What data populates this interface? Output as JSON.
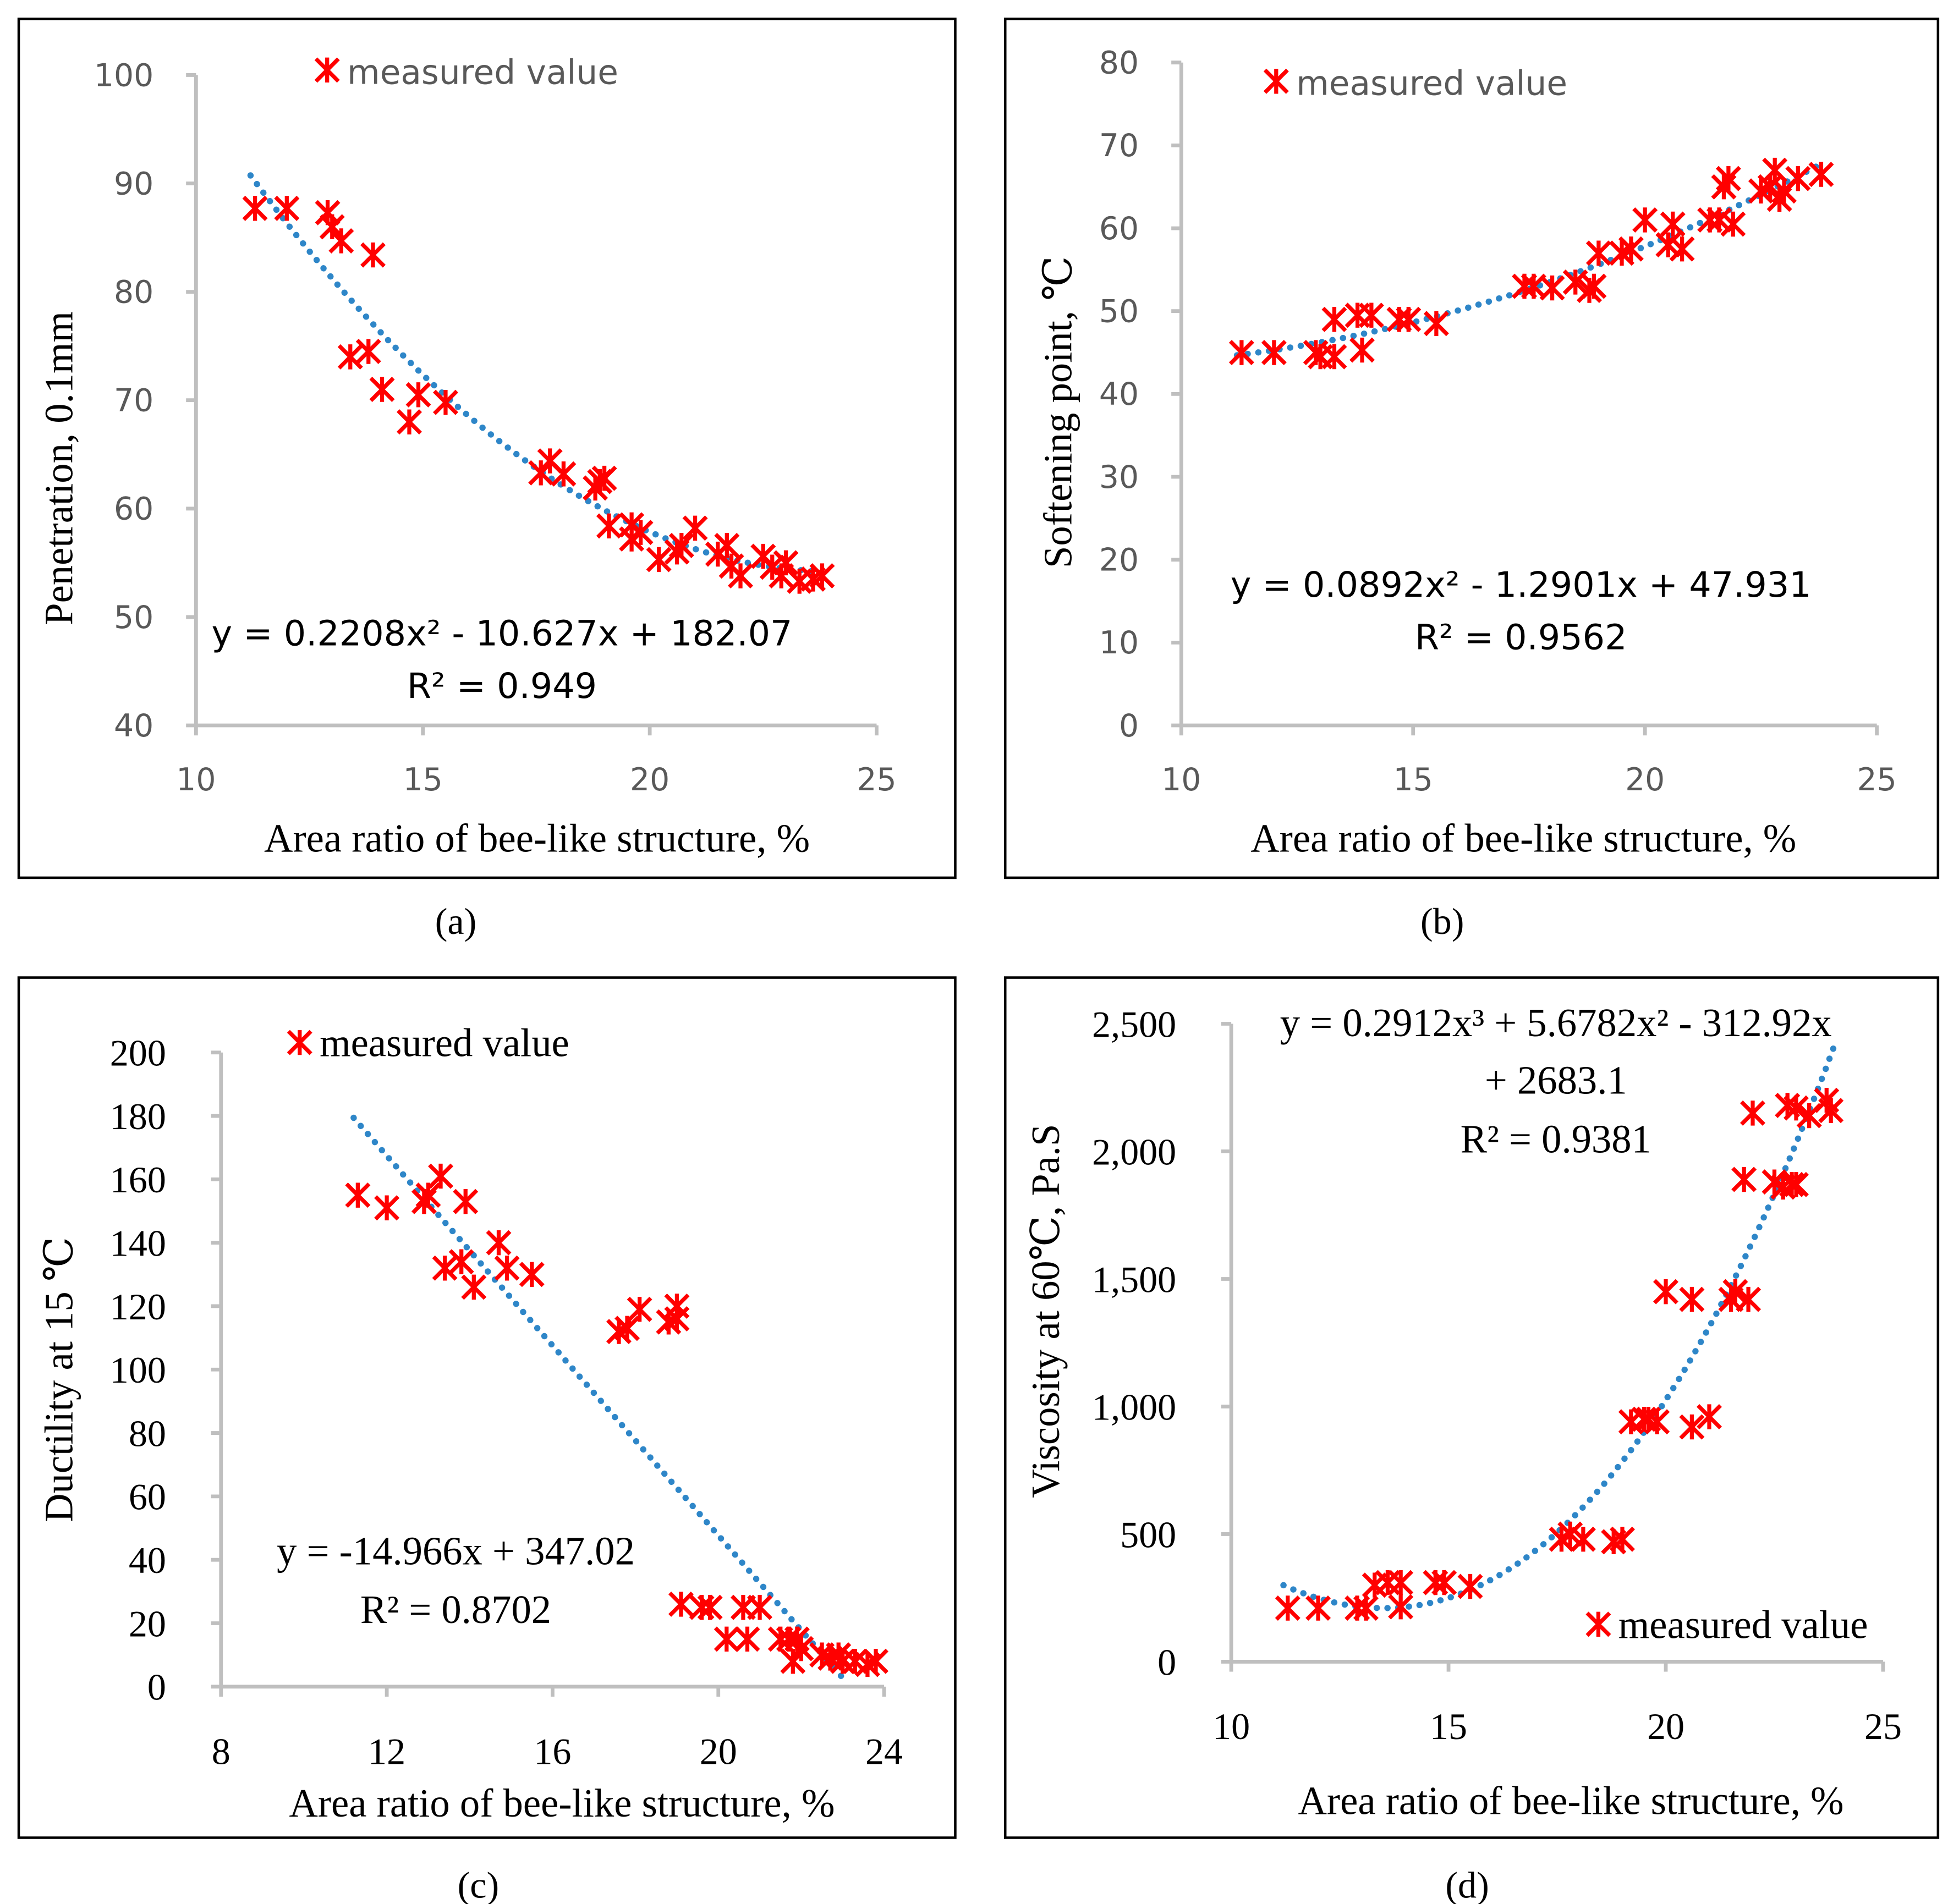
{
  "colors": {
    "marker": "#ff0000",
    "trend": "#2e86c8",
    "axis": "#bfbfbf",
    "frame": "#000000"
  },
  "chart_data": [
    {
      "type": "scatter",
      "caption": "(a)",
      "xlabel": "Area ratio of bee-like structure, %",
      "ylabel": "Penetration, 0.1mm",
      "xlim": [
        10,
        25
      ],
      "ylim": [
        40,
        100
      ],
      "xticks": [
        "10",
        "15",
        "20",
        "25"
      ],
      "xtick_values": [
        10,
        15,
        20,
        25
      ],
      "yticks": [
        "40",
        "50",
        "60",
        "70",
        "80",
        "90",
        "100"
      ],
      "ytick_values": [
        40,
        50,
        60,
        70,
        80,
        90,
        100
      ],
      "legend": "measured value",
      "legend_position": "top-left",
      "trend": {
        "type": "polynomial",
        "coefficients": [
          182.07,
          -10.627,
          0.2208
        ],
        "x_range": [
          11.2,
          23.8
        ]
      },
      "equation": [
        "y = 0.2208x² - 10.627x + 182.07",
        "R² = 0.949"
      ],
      "x": [
        11.3,
        12.0,
        12.9,
        13.0,
        13.2,
        13.9,
        13.4,
        13.8,
        14.1,
        14.7,
        14.9,
        15.5,
        17.6,
        17.8,
        18.1,
        18.8,
        18.9,
        19.0,
        19.1,
        19.6,
        19.6,
        19.8,
        20.2,
        20.6,
        20.7,
        21.0,
        21.5,
        21.7,
        21.8,
        22.0,
        22.5,
        22.7,
        22.9,
        23.0,
        23.3,
        23.6,
        23.8
      ],
      "y": [
        87.7,
        87.7,
        87.3,
        86.0,
        84.7,
        83.4,
        74.0,
        74.5,
        71.0,
        68.0,
        70.5,
        69.8,
        63.3,
        64.4,
        63.2,
        61.9,
        62.5,
        62.8,
        58.4,
        58.5,
        57.2,
        57.8,
        55.3,
        56.0,
        56.6,
        58.2,
        55.8,
        56.6,
        54.7,
        53.8,
        55.6,
        54.6,
        53.8,
        55.0,
        53.3,
        53.5,
        53.8
      ]
    },
    {
      "type": "scatter",
      "caption": "(b)",
      "xlabel": "Area ratio of bee-like structure, %",
      "ylabel": "Softening point, ℃",
      "xlim": [
        10,
        25
      ],
      "ylim": [
        0,
        80
      ],
      "xticks": [
        "10",
        "15",
        "20",
        "25"
      ],
      "xtick_values": [
        10,
        15,
        20,
        25
      ],
      "yticks": [
        "0",
        "10",
        "20",
        "30",
        "40",
        "50",
        "60",
        "70",
        "80"
      ],
      "ytick_values": [
        0,
        10,
        20,
        30,
        40,
        50,
        60,
        70,
        80
      ],
      "legend": "measured value",
      "legend_position": "top-left",
      "trend": {
        "type": "polynomial",
        "coefficients": [
          47.931,
          -1.2901,
          0.0892
        ],
        "x_range": [
          11.2,
          23.8
        ]
      },
      "equation": [
        "y = 0.0892x² - 1.2901x + 47.931",
        "R² = 0.9562"
      ],
      "x": [
        11.3,
        12.0,
        12.9,
        13.0,
        13.3,
        13.3,
        13.8,
        13.9,
        14.1,
        14.7,
        14.9,
        15.5,
        17.4,
        17.6,
        18.0,
        18.5,
        18.8,
        18.9,
        19.0,
        19.5,
        19.7,
        20.0,
        20.5,
        20.6,
        20.8,
        21.4,
        21.6,
        21.7,
        21.8,
        21.9,
        22.5,
        22.7,
        22.8,
        22.9,
        23.0,
        23.3,
        23.8
      ],
      "y": [
        45,
        45,
        45,
        44.5,
        44.5,
        49,
        49.5,
        45.3,
        49.5,
        49,
        49,
        48.5,
        53,
        53,
        52.8,
        53.5,
        52.5,
        53,
        57,
        57,
        57.5,
        61,
        58,
        60.5,
        57.5,
        61,
        61,
        65,
        66,
        60.5,
        64.5,
        65,
        67,
        63.5,
        64.5,
        66,
        66.5
      ]
    },
    {
      "type": "scatter",
      "caption": "(c)",
      "xlabel": "Area ratio of bee-like structure, %",
      "ylabel": "Ductility at 15 ℃",
      "xlim": [
        8,
        24
      ],
      "ylim": [
        0,
        200
      ],
      "xticks": [
        "8",
        "12",
        "16",
        "20",
        "24"
      ],
      "xtick_values": [
        8,
        12,
        16,
        20,
        24
      ],
      "yticks": [
        "0",
        "20",
        "40",
        "60",
        "80",
        "100",
        "120",
        "140",
        "160",
        "180",
        "200"
      ],
      "ytick_values": [
        0,
        20,
        40,
        60,
        80,
        100,
        120,
        140,
        160,
        180,
        200
      ],
      "legend": "measured value",
      "legend_position": "top-left",
      "trend": {
        "type": "polynomial",
        "coefficients": [
          347.02,
          -14.966
        ],
        "x_range": [
          11.2,
          23.1
        ]
      },
      "equation": [
        "y = -14.966x + 347.02",
        "R² = 0.8702"
      ],
      "x": [
        11.3,
        12.0,
        12.9,
        13.0,
        13.3,
        13.4,
        13.8,
        13.9,
        14.1,
        14.7,
        14.9,
        15.5,
        17.6,
        17.8,
        18.1,
        18.8,
        19.0,
        19.0,
        19.1,
        19.6,
        19.8,
        20.2,
        20.6,
        20.7,
        21.0,
        21.5,
        21.7,
        21.8,
        21.9,
        22.0,
        22.5,
        22.7,
        22.9,
        23.0,
        23.3,
        23.6,
        23.8
      ],
      "y": [
        155,
        151,
        153,
        155,
        161,
        132,
        134,
        153,
        126,
        140,
        132,
        130,
        112,
        113,
        119,
        115,
        120,
        116,
        26,
        25,
        25,
        15,
        25,
        15,
        25,
        15,
        15,
        8,
        15,
        12,
        10,
        9,
        10,
        8,
        8,
        7,
        8
      ]
    },
    {
      "type": "scatter",
      "caption": "(d)",
      "xlabel": "Area ratio of bee-like structure, %",
      "ylabel": "Viscosity at 60℃, Pa.S",
      "xlim": [
        10,
        25
      ],
      "ylim": [
        0,
        2500
      ],
      "xticks": [
        "10",
        "15",
        "20",
        "25"
      ],
      "xtick_values": [
        10,
        15,
        20,
        25
      ],
      "yticks": [
        "0",
        "500",
        "1,000",
        "1,500",
        "2,000",
        "2,500"
      ],
      "ytick_values": [
        0,
        500,
        1000,
        1500,
        2000,
        2500
      ],
      "legend": "measured value",
      "legend_position": "bottom-right",
      "trend": {
        "type": "polynomial",
        "coefficients": [
          2683.1,
          -312.92,
          5.6782,
          0.2912
        ],
        "x_range": [
          11.2,
          23.9
        ]
      },
      "equation": [
        "y = 0.2912x³ + 5.6782x² - 312.92x",
        "+ 2683.1",
        "R² = 0.9381"
      ],
      "x": [
        11.3,
        12.0,
        12.9,
        13.1,
        13.3,
        13.6,
        13.9,
        13.9,
        14.7,
        14.9,
        15.5,
        17.6,
        17.8,
        18.1,
        18.8,
        19.0,
        19.2,
        19.5,
        19.6,
        19.8,
        20.0,
        20.6,
        20.6,
        21.0,
        21.5,
        21.6,
        21.9,
        21.8,
        22.0,
        22.5,
        22.7,
        22.8,
        22.9,
        23.0,
        23.0,
        23.3,
        23.7,
        23.8
      ],
      "y": [
        210,
        210,
        210,
        210,
        300,
        310,
        310,
        215,
        310,
        310,
        295,
        480,
        500,
        480,
        470,
        480,
        940,
        950,
        950,
        940,
        1450,
        1420,
        920,
        960,
        1420,
        1450,
        1420,
        1890,
        2150,
        1880,
        1860,
        2180,
        1870,
        1870,
        2170,
        2140,
        2200,
        2160
      ]
    }
  ]
}
